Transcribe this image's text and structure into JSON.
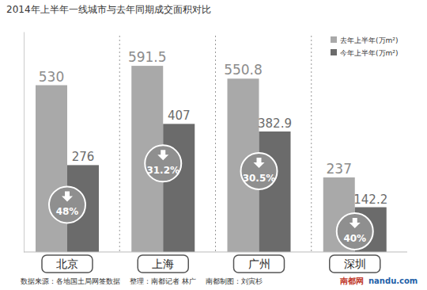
{
  "chart_data": {
    "type": "bar",
    "title": "2014年上半年一线城市与去年同期成交面积对比",
    "categories": [
      "北京",
      "上海",
      "广州",
      "深圳"
    ],
    "series": [
      {
        "name": "去年上半年(万m²)",
        "color": "#a9a9a9",
        "values": [
          530,
          591.5,
          550.8,
          237
        ]
      },
      {
        "name": "今年上半年(万m²)",
        "color": "#6b6b6b",
        "values": [
          276,
          407,
          382.9,
          142.2
        ]
      }
    ],
    "ylim": [
      0,
      700
    ],
    "tick_labels": false,
    "data_labels": true,
    "legend": "top-right",
    "grid": false,
    "change": {
      "values": [
        48,
        31.2,
        30.5,
        40
      ],
      "value_labels": [
        "48%",
        "31.2%",
        "30.5%",
        "40%"
      ]
    },
    "source": "数据来源：各地国土局网签数据",
    "credits": [
      "整理：南都记者 林广",
      "南都制图：刘寅杉"
    ],
    "watermark": [
      "南都网",
      "nandu.com"
    ]
  }
}
